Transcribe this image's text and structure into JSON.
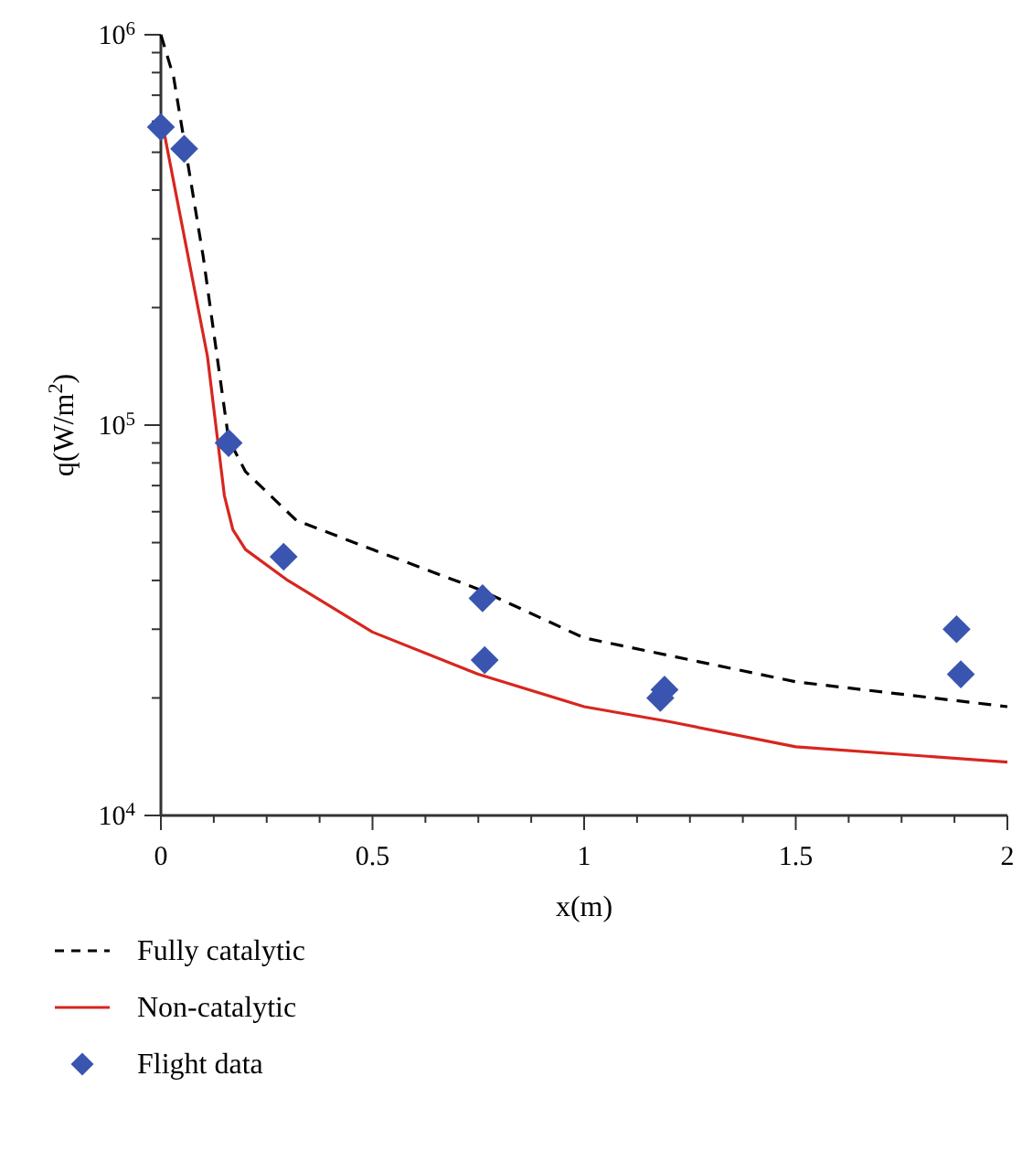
{
  "chart_data": {
    "type": "line",
    "xlabel": "x(m)",
    "ylabel": "q(W/m$^{2}$)",
    "xlim": [
      0,
      2
    ],
    "xticks": [
      0,
      0.5,
      1,
      1.5,
      2
    ],
    "ylim": [
      10000,
      1000000
    ],
    "yticks": [
      {
        "value": 10000,
        "label": "10$^{4}$"
      },
      {
        "value": 100000,
        "label": "10$^{5}$"
      },
      {
        "value": 1000000,
        "label": "10$^{6}$"
      }
    ],
    "log": "y",
    "grid": false,
    "legend": "bottom",
    "series": [
      {
        "name": "Fully catalytic",
        "line_style": "dashed",
        "color": "#000000",
        "x": [
          0,
          0.03,
          0.1,
          0.16,
          0.2,
          0.32,
          0.5,
          0.75,
          1,
          1.5,
          2
        ],
        "values": [
          1000000,
          780000,
          270000,
          92000,
          76000,
          57000,
          48000,
          38000,
          28500,
          22000,
          19000
        ]
      },
      {
        "name": "Non-catalytic",
        "line_style": "solid",
        "color": "#d7261e",
        "x": [
          0,
          0.04,
          0.11,
          0.15,
          0.17,
          0.2,
          0.3,
          0.5,
          0.75,
          1,
          1.2,
          1.5,
          2
        ],
        "values": [
          620000,
          370000,
          150000,
          66000,
          54000,
          48000,
          40000,
          29500,
          23000,
          19000,
          17400,
          15000,
          13700
        ]
      },
      {
        "name": "Flight data",
        "type": "scatter",
        "marker": "diamond",
        "color": "#3a55b0",
        "x": [
          0,
          0.055,
          0.16,
          0.29,
          0.76,
          0.765,
          1.18,
          1.19,
          1.88,
          1.89
        ],
        "values": [
          580000,
          510000,
          90000,
          46000,
          36000,
          25000,
          20000,
          21000,
          30000,
          23000
        ]
      }
    ]
  }
}
